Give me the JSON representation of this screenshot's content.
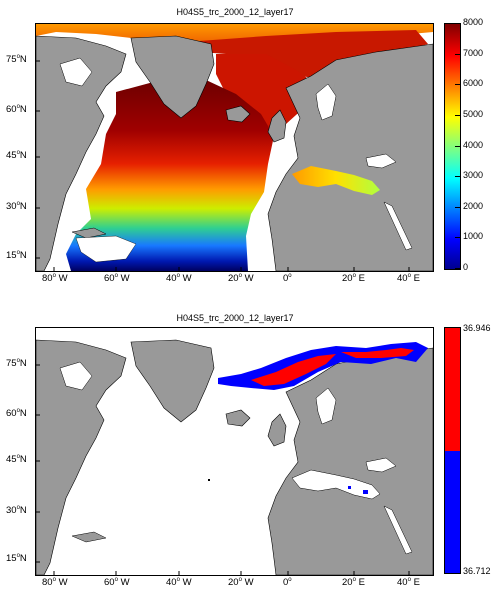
{
  "maps": [
    {
      "title": "H04S5_trc_2000_12_layer17",
      "colorbar": {
        "type": "continuous",
        "colormap": "jet",
        "min": 0,
        "max": 8000,
        "ticks": [
          "0",
          "1000",
          "2000",
          "3000",
          "4000",
          "5000",
          "6000",
          "7000",
          "8000"
        ]
      }
    },
    {
      "title": "H04S5_trc_2000_12_layer17",
      "colorbar": {
        "type": "binary",
        "top_label": "36.946",
        "bottom_label": "36.712",
        "colors": [
          "#ff0000",
          "#0000ff"
        ]
      }
    }
  ],
  "lon_ticks": [
    "80",
    "60",
    "40",
    "20",
    "0",
    "20",
    "40"
  ],
  "lon_suffix": [
    "W",
    "W",
    "W",
    "W",
    "",
    "E",
    "E"
  ],
  "lat_ticks": [
    "75",
    "60",
    "45",
    "30",
    "15"
  ],
  "lat_suffix": "N",
  "colors": {
    "land": "#999999",
    "ocean_nodata": "#ffffff",
    "coast": "#000000"
  }
}
